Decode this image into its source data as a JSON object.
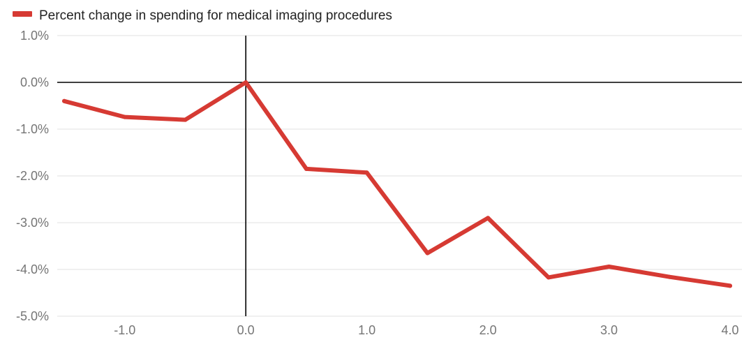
{
  "chart_data": {
    "type": "line",
    "series": [
      {
        "name": "Percent change in spending for medical imaging procedures",
        "color": "#d63a33",
        "x": [
          -1.5,
          -1.0,
          -0.5,
          0.0,
          0.5,
          1.0,
          1.5,
          2.0,
          2.5,
          3.0,
          3.5,
          4.0
        ],
        "values": [
          -0.4,
          -0.74,
          -0.8,
          0.0,
          -1.85,
          -1.93,
          -3.65,
          -2.9,
          -4.17,
          -3.94,
          -4.16,
          -4.35
        ]
      }
    ],
    "xlim": [
      -1.5,
      4.0
    ],
    "ylim": [
      -5.0,
      1.0
    ],
    "xticks": [
      -1.0,
      0.0,
      1.0,
      2.0,
      3.0,
      4.0
    ],
    "xtick_labels": [
      "-1.0",
      "0.0",
      "1.0",
      "2.0",
      "3.0",
      "4.0"
    ],
    "yticks": [
      1.0,
      0.0,
      -1.0,
      -2.0,
      -3.0,
      -4.0,
      -5.0
    ],
    "ytick_labels": [
      "1.0%",
      "0.0%",
      "-1.0%",
      "-2.0%",
      "-3.0%",
      "-4.0%",
      "-5.0%"
    ],
    "grid": true,
    "legend_position": "top-left",
    "title": "",
    "xlabel": "",
    "ylabel": ""
  }
}
